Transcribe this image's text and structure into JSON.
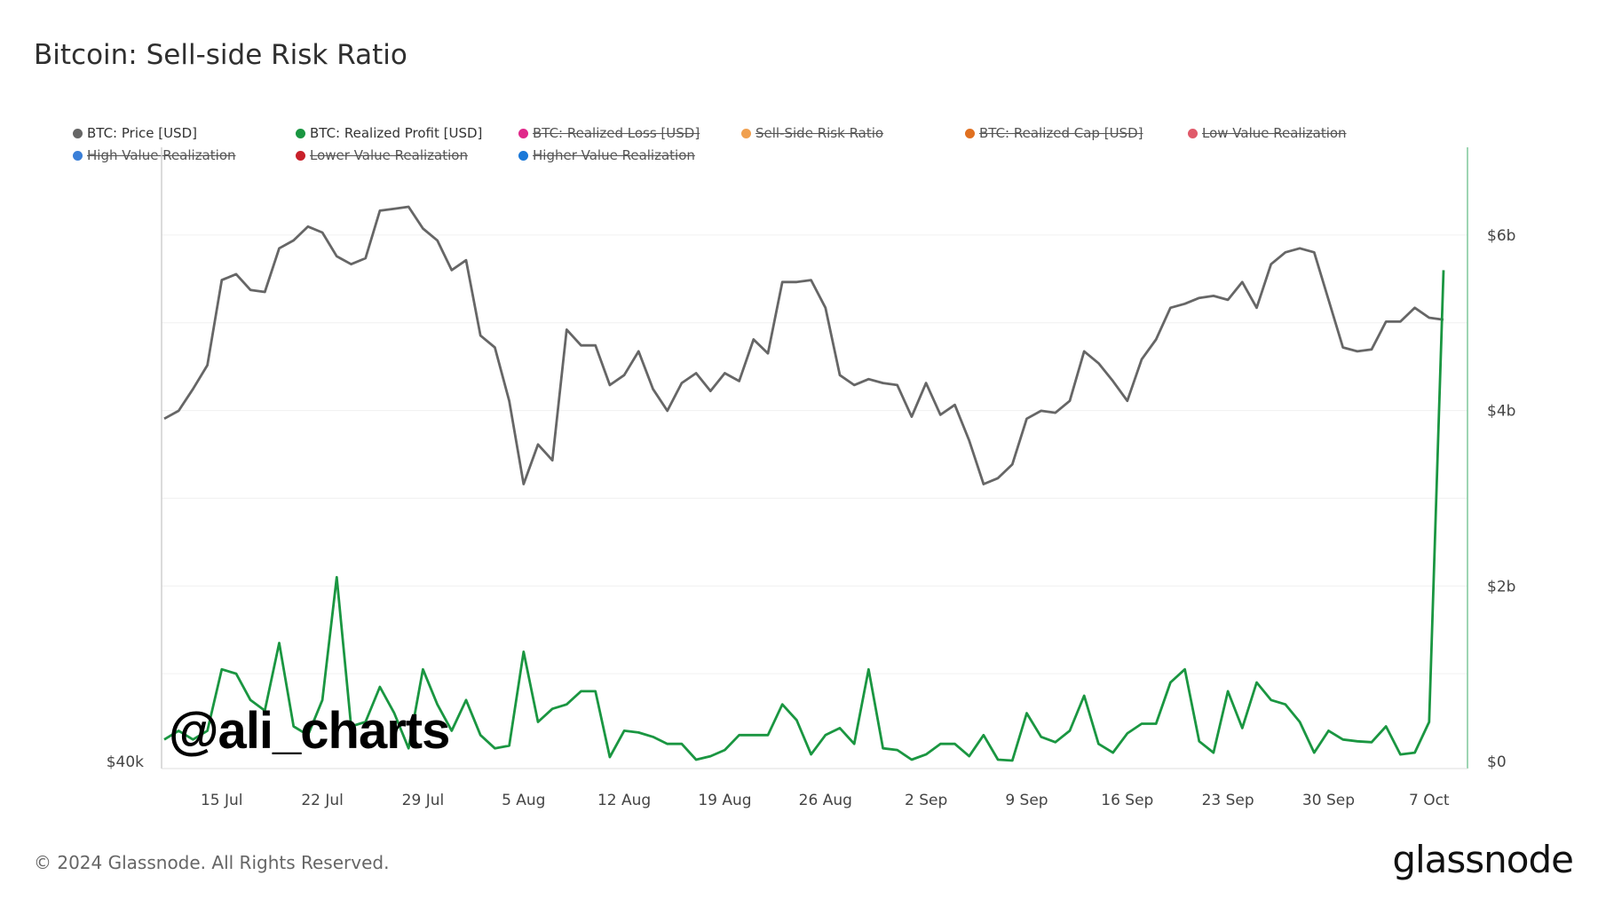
{
  "header": {
    "title": "Bitcoin: Sell-side Risk Ratio"
  },
  "legend": {
    "items": [
      {
        "label": "BTC: Price [USD]",
        "color": "#666666",
        "active": true
      },
      {
        "label": "BTC: Realized Profit [USD]",
        "color": "#1a9641",
        "active": true
      },
      {
        "label": "BTC: Realized Loss [USD]",
        "color": "#e0288a",
        "active": false
      },
      {
        "label": "Sell-Side Risk Ratio",
        "color": "#f0a050",
        "active": false
      },
      {
        "label": "BTC: Realized Cap [USD]",
        "color": "#e07020",
        "active": false
      },
      {
        "label": "Low Value Realization",
        "color": "#e05a6a",
        "active": false
      },
      {
        "label": "High Value Realization",
        "color": "#3a7fd8",
        "active": false
      },
      {
        "label": "Lower Value Realization",
        "color": "#c8202a",
        "active": false
      },
      {
        "label": "Higher Value Realization",
        "color": "#1a78d8",
        "active": false
      }
    ]
  },
  "watermark": "@ali_charts",
  "footer": {
    "copyright": "© 2024 Glassnode. All Rights Reserved.",
    "brand": "glassnode"
  },
  "chart_data": {
    "type": "line",
    "x": [
      "Jul 11",
      "Jul 12",
      "Jul 13",
      "Jul 14",
      "Jul 15",
      "Jul 16",
      "Jul 17",
      "Jul 18",
      "Jul 19",
      "Jul 20",
      "Jul 21",
      "Jul 22",
      "Jul 23",
      "Jul 24",
      "Jul 25",
      "Jul 26",
      "Jul 27",
      "Jul 28",
      "Jul 29",
      "Jul 30",
      "Jul 31",
      "Aug 1",
      "Aug 2",
      "Aug 3",
      "Aug 4",
      "Aug 5",
      "Aug 6",
      "Aug 7",
      "Aug 8",
      "Aug 9",
      "Aug 10",
      "Aug 11",
      "Aug 12",
      "Aug 13",
      "Aug 14",
      "Aug 15",
      "Aug 16",
      "Aug 17",
      "Aug 18",
      "Aug 19",
      "Aug 20",
      "Aug 21",
      "Aug 22",
      "Aug 23",
      "Aug 24",
      "Aug 25",
      "Aug 26",
      "Aug 27",
      "Aug 28",
      "Aug 29",
      "Aug 30",
      "Aug 31",
      "Sep 1",
      "Sep 2",
      "Sep 3",
      "Sep 4",
      "Sep 5",
      "Sep 6",
      "Sep 7",
      "Sep 8",
      "Sep 9",
      "Sep 10",
      "Sep 11",
      "Sep 12",
      "Sep 13",
      "Sep 14",
      "Sep 15",
      "Sep 16",
      "Sep 17",
      "Sep 18",
      "Sep 19",
      "Sep 20",
      "Sep 21",
      "Sep 22",
      "Sep 23",
      "Sep 24",
      "Sep 25",
      "Sep 26",
      "Sep 27",
      "Sep 28",
      "Sep 29",
      "Sep 30",
      "Oct 1",
      "Oct 2",
      "Oct 3",
      "Oct 4",
      "Oct 5",
      "Oct 6",
      "Oct 7",
      "Oct 8"
    ],
    "x_ticks": [
      "15 Jul",
      "22 Jul",
      "29 Jul",
      "5 Aug",
      "12 Aug",
      "19 Aug",
      "26 Aug",
      "2 Sep",
      "9 Sep",
      "16 Sep",
      "23 Sep",
      "30 Sep",
      "7 Oct"
    ],
    "x_tick_dates": [
      "Jul 15",
      "Jul 22",
      "Jul 29",
      "Aug 5",
      "Aug 12",
      "Aug 19",
      "Aug 26",
      "Sep 2",
      "Sep 9",
      "Sep 16",
      "Sep 23",
      "Sep 30",
      "Oct 7"
    ],
    "left_axis": {
      "tick_labels": [
        "$40k"
      ],
      "tick_values": [
        40000
      ],
      "range": [
        40000,
        71000
      ]
    },
    "right_axis": {
      "tick_labels": [
        "$0",
        "$2b",
        "$4b",
        "$6b"
      ],
      "tick_values": [
        0,
        2000000000,
        4000000000,
        6000000000
      ],
      "range": [
        0,
        7000000000
      ]
    },
    "series": [
      {
        "name": "BTC: Price [USD]",
        "axis": "left",
        "color": "#666666",
        "values": [
          57300,
          57700,
          58800,
          60000,
          64300,
          64600,
          63800,
          63700,
          65900,
          66300,
          67000,
          66700,
          65500,
          65100,
          65400,
          67800,
          67900,
          68000,
          66900,
          66300,
          64800,
          65300,
          61500,
          60900,
          58200,
          54000,
          56000,
          55200,
          61800,
          61000,
          61000,
          59000,
          59500,
          60700,
          58800,
          57700,
          59100,
          59600,
          58700,
          59600,
          59200,
          61300,
          60600,
          64200,
          64200,
          64300,
          62900,
          59500,
          59000,
          59300,
          59100,
          59000,
          57400,
          59100,
          57500,
          58000,
          56200,
          54000,
          54300,
          55000,
          57300,
          57700,
          57600,
          58200,
          60700,
          60100,
          59200,
          58200,
          60300,
          61300,
          62900,
          63100,
          63400,
          63500,
          63300,
          64200,
          62900,
          65100,
          65700,
          65900,
          65700,
          63300,
          60900,
          60700,
          60800,
          62200,
          62200,
          62900,
          62400,
          62300
        ]
      },
      {
        "name": "BTC: Realized Profit [USD]",
        "axis": "right",
        "color": "#1a9641",
        "values": [
          250000000,
          350000000,
          250000000,
          350000000,
          1050000000,
          1000000000,
          700000000,
          580000000,
          1350000000,
          400000000,
          300000000,
          700000000,
          2100000000,
          400000000,
          450000000,
          850000000,
          550000000,
          150000000,
          1050000000,
          650000000,
          350000000,
          700000000,
          300000000,
          150000000,
          180000000,
          1250000000,
          450000000,
          600000000,
          650000000,
          800000000,
          800000000,
          50000000,
          350000000,
          330000000,
          280000000,
          200000000,
          200000000,
          20000000,
          60000000,
          130000000,
          300000000,
          300000000,
          300000000,
          650000000,
          470000000,
          80000000,
          300000000,
          380000000,
          200000000,
          1050000000,
          150000000,
          130000000,
          20000000,
          80000000,
          200000000,
          200000000,
          60000000,
          300000000,
          20000000,
          10000000,
          550000000,
          280000000,
          220000000,
          350000000,
          750000000,
          200000000,
          100000000,
          320000000,
          430000000,
          430000000,
          900000000,
          1050000000,
          230000000,
          100000000,
          800000000,
          380000000,
          900000000,
          700000000,
          650000000,
          450000000,
          100000000,
          350000000,
          250000000,
          230000000,
          220000000,
          400000000,
          80000000,
          100000000,
          450000000,
          5600000000
        ]
      }
    ],
    "grid": true,
    "legend_position": "top-left"
  }
}
